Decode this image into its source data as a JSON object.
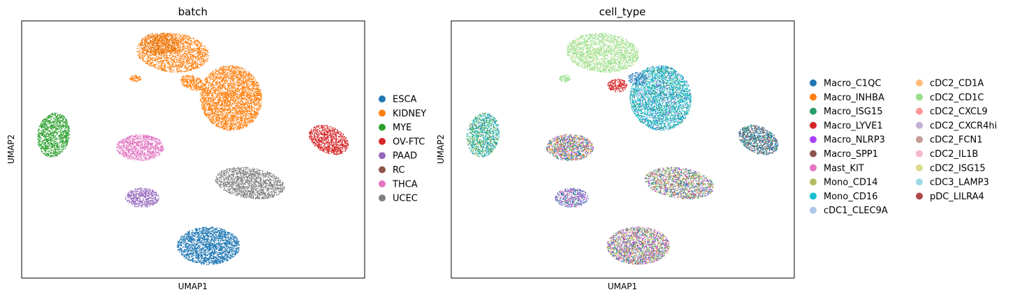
{
  "chart_data": [
    {
      "type": "scatter",
      "title": "batch",
      "xlabel": "UMAP1",
      "ylabel": "UMAP2",
      "grid": false,
      "ticks": false,
      "legend_placement": "right",
      "series": [
        {
          "name": "ESCA",
          "color": "#1f77b4"
        },
        {
          "name": "KIDNEY",
          "color": "#ff7f0e"
        },
        {
          "name": "MYE",
          "color": "#2ca02c"
        },
        {
          "name": "OV-FTC",
          "color": "#d62728"
        },
        {
          "name": "PAAD",
          "color": "#9467bd"
        },
        {
          "name": "RC",
          "color": "#8c564b"
        },
        {
          "name": "THCA",
          "color": "#e377c2"
        },
        {
          "name": "UCEC",
          "color": "#7f7f7f"
        }
      ]
    },
    {
      "type": "scatter",
      "title": "cell_type",
      "xlabel": "UMAP1",
      "ylabel": "UMAP2",
      "grid": false,
      "ticks": false,
      "legend_placement": "right",
      "series": [
        {
          "name": "Macro_C1QC",
          "color": "#1f77b4"
        },
        {
          "name": "Macro_INHBA",
          "color": "#ff7f0e"
        },
        {
          "name": "Macro_ISG15",
          "color": "#279e68"
        },
        {
          "name": "Macro_LYVE1",
          "color": "#d62728"
        },
        {
          "name": "Macro_NLRP3",
          "color": "#aa40fc"
        },
        {
          "name": "Macro_SPP1",
          "color": "#8c564b"
        },
        {
          "name": "Mast_KIT",
          "color": "#e377c2"
        },
        {
          "name": "Mono_CD14",
          "color": "#b5bd61"
        },
        {
          "name": "Mono_CD16",
          "color": "#17becf"
        },
        {
          "name": "cDC1_CLEC9A",
          "color": "#aec7e8"
        },
        {
          "name": "cDC2_CD1A",
          "color": "#ffbb78"
        },
        {
          "name": "cDC2_CD1C",
          "color": "#98df8a"
        },
        {
          "name": "cDC2_CXCL9",
          "color": "#ff9896"
        },
        {
          "name": "cDC2_CXCR4hi",
          "color": "#c5b0d5"
        },
        {
          "name": "cDC2_FCN1",
          "color": "#c49c94"
        },
        {
          "name": "cDC2_IL1B",
          "color": "#f7b6d2"
        },
        {
          "name": "cDC2_ISG15",
          "color": "#dbdb8d"
        },
        {
          "name": "cDC3_LAMP3",
          "color": "#9edae5"
        },
        {
          "name": "pDC_LILRA4",
          "color": "#ad494a"
        }
      ]
    }
  ]
}
